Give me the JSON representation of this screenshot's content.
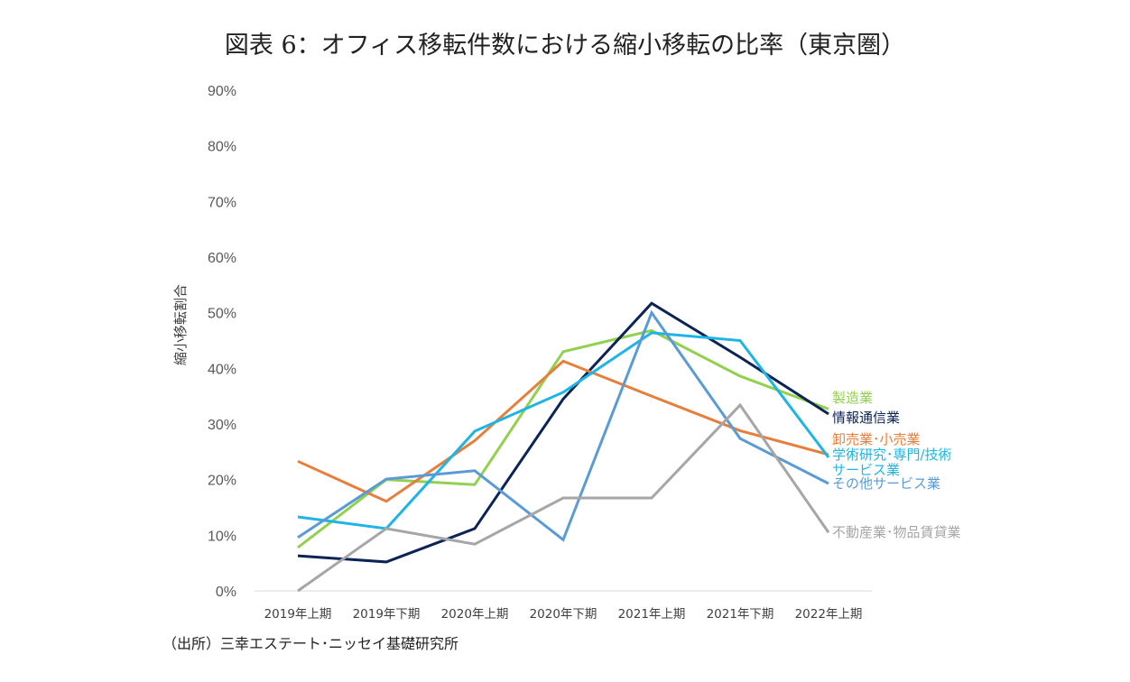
{
  "chart_data": {
    "type": "line",
    "title": "図表 6：オフィス移転件数における縮小移転の比率（東京圏）",
    "ylabel": "縮小移転割合",
    "xlabel": "",
    "categories": [
      "2019年上期",
      "2019年下期",
      "2020年上期",
      "2020年下期",
      "2021年上期",
      "2021年下期",
      "2022年上期"
    ],
    "ylim": [
      0,
      90
    ],
    "yticks": [
      "0%",
      "10%",
      "20%",
      "30%",
      "40%",
      "50%",
      "60%",
      "70%",
      "80%",
      "90%"
    ],
    "grid": false,
    "legend": "direct labels at right end of lines",
    "series": [
      {
        "name": "製造業",
        "color": "#92d050",
        "values": [
          7.8,
          20.0,
          19.1,
          43.0,
          46.8,
          38.6,
          32.7
        ]
      },
      {
        "name": "情報通信業",
        "color": "#0c2356",
        "values": [
          6.3,
          5.2,
          11.2,
          34.5,
          51.7,
          42.0,
          31.8
        ]
      },
      {
        "name": "卸売業･小売業",
        "color": "#e67e3c",
        "values": [
          23.3,
          16.1,
          27.0,
          41.3,
          35.0,
          28.8,
          24.5
        ]
      },
      {
        "name": "学術研究･専門/技術サービス業",
        "label_lines": [
          "学術研究･専門/技術",
          "サービス業"
        ],
        "color": "#1fb4e6",
        "values": [
          13.3,
          11.2,
          28.7,
          35.7,
          46.4,
          45.0,
          24.0
        ]
      },
      {
        "name": "その他サービス業",
        "color": "#5b9bd5",
        "values": [
          9.6,
          20.1,
          21.6,
          9.2,
          50.0,
          27.4,
          19.3
        ]
      },
      {
        "name": "不動産業･物品賃貸業",
        "color": "#a6a6a6",
        "values": [
          0.0,
          11.2,
          8.4,
          16.7,
          16.7,
          33.4,
          10.5
        ]
      }
    ]
  },
  "source": "（出所）三幸エステート･ニッセイ基礎研究所"
}
